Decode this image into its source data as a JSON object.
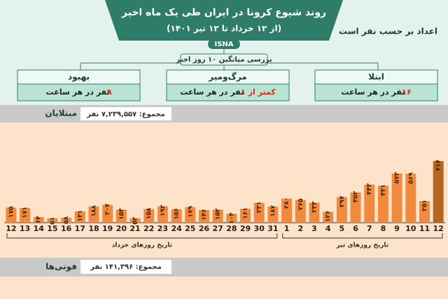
{
  "header": {
    "title": "روند شیوع کرونا در ایران طی یک ماه اخیر",
    "subtitle": "(از ۱۲ خرداد تا ۱۲ تیر ۱۴۰۱)",
    "note": "اعداد بر حسب نفر است",
    "logo": "ISNA"
  },
  "summary": {
    "heading": "بررسی میانگین ۱۰ روز اخیر",
    "boxes": [
      {
        "label": "ابتلا",
        "number": "۱۶",
        "unit": "نفر در هر ساعت"
      },
      {
        "label": "مرگ‌ومیر",
        "number": "کمتر از ۱",
        "unit": "نفر در هر ساعت"
      },
      {
        "label": "بهبود",
        "number": "۹",
        "unit": "نفر در هر ساعت"
      }
    ]
  },
  "chart_data": {
    "type": "bar",
    "title": "مبتلایان",
    "total": "مجموع: ۷,۲۳۹,۵۵۷ نفر",
    "group_labels": [
      "تاریخ روزهای خرداد",
      "تاریخ روزهای تیر"
    ],
    "categories": [
      "12",
      "13",
      "14",
      "15",
      "16",
      "17",
      "18",
      "19",
      "20",
      "21",
      "22",
      "23",
      "24",
      "25",
      "26",
      "27",
      "28",
      "29",
      "30",
      "31",
      "1",
      "2",
      "3",
      "4",
      "5",
      "6",
      "7",
      "8",
      "9",
      "10",
      "11",
      "12"
    ],
    "values": [
      175,
      171,
      64,
      51,
      58,
      131,
      188,
      207,
      153,
      52,
      158,
      192,
      156,
      179,
      146,
      152,
      104,
      161,
      231,
      187,
      280,
      265,
      233,
      126,
      297,
      352,
      443,
      431,
      573,
      569,
      251,
      717
    ],
    "value_labels": [
      "۱۷۵",
      "۱۷۱",
      "۶۴",
      "۵۱",
      "۵۸",
      "۱۳۱",
      "۱۸۸",
      "۲۰۷",
      "۱۵۳",
      "۵۲",
      "۱۵۸",
      "۱۹۲",
      "۱۵۶",
      "۱۷۹",
      "۱۴۶",
      "۱۵۲",
      "۱۰۴",
      "۱۶۱",
      "۲۳۱",
      "۱۸۷",
      "۲۸۰",
      "۲۶۵",
      "۲۳۳",
      "۱۲۶",
      "۲۹۷",
      "۳۵۲",
      "۴۴۳",
      "۴۳۱",
      "۵۷۳",
      "۵۶۹",
      "۲۵۱",
      "۷۱۷"
    ],
    "colors": [
      "#f28a3e",
      "#f28a3e",
      "#f28a3e",
      "#f28a3e",
      "#f28a3e",
      "#f28a3e",
      "#f28a3e",
      "#f28a3e",
      "#f28a3e",
      "#f28a3e",
      "#f28a3e",
      "#f28a3e",
      "#f28a3e",
      "#f28a3e",
      "#f28a3e",
      "#f28a3e",
      "#f28a3e",
      "#f28a3e",
      "#f28a3e",
      "#f28a3e",
      "#f28a3e",
      "#f28a3e",
      "#f28a3e",
      "#f28a3e",
      "#f28a3e",
      "#f28a3e",
      "#f28a3e",
      "#f28a3e",
      "#f28a3e",
      "#f28a3e",
      "#f28a3e",
      "#b5661f"
    ]
  },
  "deaths": {
    "title": "فوتی‌ها",
    "total": "مجموع: ۱۴۱,۳۹۶ نفر"
  }
}
